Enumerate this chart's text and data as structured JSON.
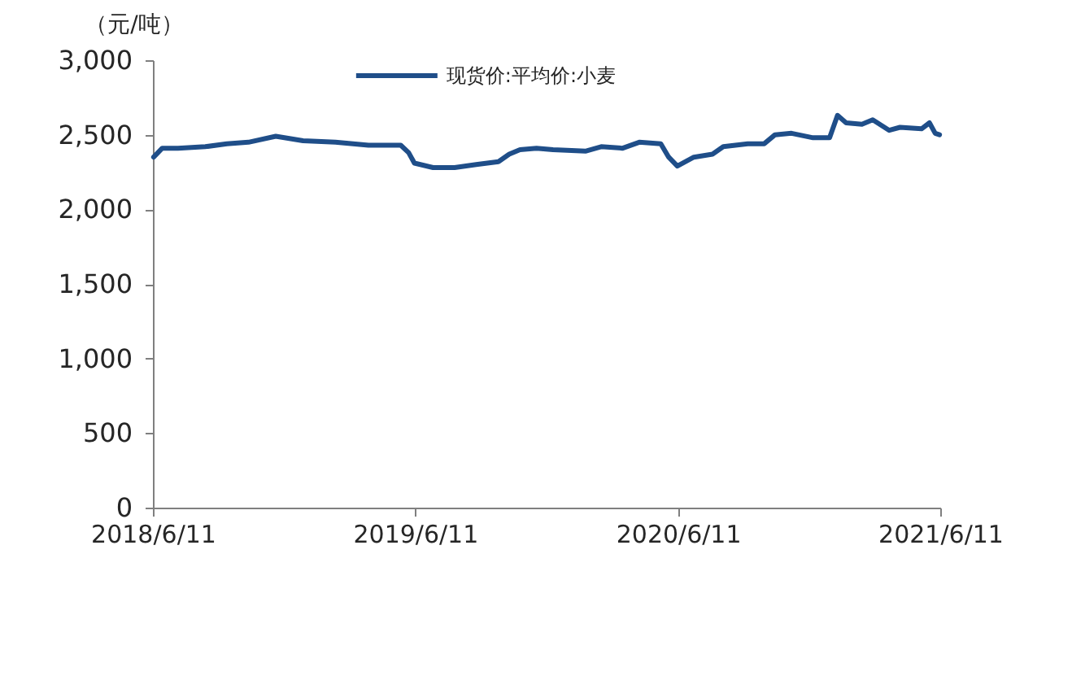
{
  "chart_data": {
    "type": "line",
    "ylabel": "（元/吨）",
    "x": [
      "2018-06-12",
      "2018-06-24",
      "2018-07-16",
      "2018-08-23",
      "2018-09-22",
      "2018-10-22",
      "2018-11-29",
      "2019-01-06",
      "2019-02-20",
      "2019-04-07",
      "2019-05-22",
      "2019-06-02",
      "2019-06-10",
      "2019-07-06",
      "2019-08-05",
      "2019-09-04",
      "2019-10-05",
      "2019-10-20",
      "2019-11-04",
      "2019-11-27",
      "2019-12-20",
      "2020-02-03",
      "2020-02-25",
      "2020-03-26",
      "2020-04-18",
      "2020-05-18",
      "2020-05-29",
      "2020-06-10",
      "2020-07-03",
      "2020-07-29",
      "2020-08-13",
      "2020-09-16",
      "2020-10-09",
      "2020-10-24",
      "2020-11-16",
      "2020-12-16",
      "2021-01-08",
      "2021-01-19",
      "2021-01-31",
      "2021-02-22",
      "2021-03-09",
      "2021-04-01",
      "2021-04-16",
      "2021-05-16",
      "2021-05-27",
      "2021-06-04",
      "2021-06-10"
    ],
    "series": [
      {
        "name": "现货价:平均价:小麦",
        "color": "#1f4e89",
        "values": [
          2350,
          2410,
          2410,
          2420,
          2440,
          2450,
          2490,
          2460,
          2450,
          2430,
          2430,
          2380,
          2310,
          2280,
          2280,
          2300,
          2320,
          2370,
          2400,
          2410,
          2400,
          2390,
          2420,
          2410,
          2450,
          2440,
          2350,
          2290,
          2350,
          2370,
          2420,
          2440,
          2440,
          2500,
          2510,
          2480,
          2480,
          2630,
          2580,
          2570,
          2600,
          2530,
          2550,
          2540,
          2580,
          2510,
          2500
        ]
      }
    ],
    "xlim": [
      "2018-06-11",
      "2021-06-11"
    ],
    "xticks": [
      {
        "value": "2018-06-11",
        "label": "2018/6/11"
      },
      {
        "value": "2019-06-11",
        "label": "2019/6/11"
      },
      {
        "value": "2020-06-11",
        "label": "2020/6/11"
      },
      {
        "value": "2021-06-11",
        "label": "2021/6/11"
      }
    ],
    "ylim": [
      0,
      3000
    ],
    "yticks": [
      0,
      500,
      {
        "value": 1000,
        "label": "1,000"
      },
      {
        "value": 1500,
        "label": "1,500"
      },
      {
        "value": 2000,
        "label": "2,000"
      },
      {
        "value": 2500,
        "label": "2,500"
      },
      {
        "value": 3000,
        "label": "3,000"
      }
    ],
    "grid": false,
    "legend": "top",
    "line_style": "solid"
  }
}
